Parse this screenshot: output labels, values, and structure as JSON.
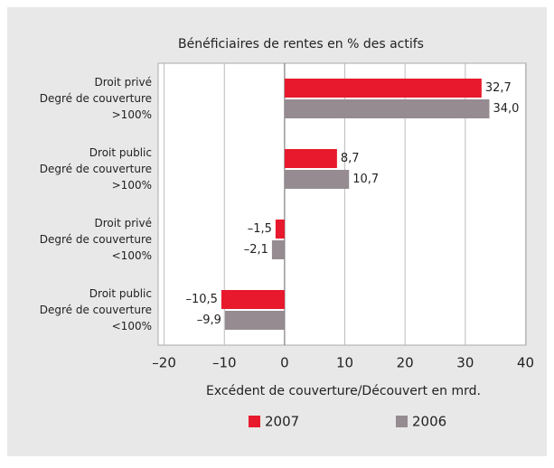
{
  "chart_data": {
    "type": "bar",
    "orientation": "horizontal",
    "title": "Bénéficiaires de rentes en % des actifs",
    "xlabel": "Excédent de couverture/Découvert en mrd.",
    "categories": [
      "Droit privé\nDegré de couverture\n>100%",
      "Droit public\nDegré de couverture\n>100%",
      "Droit privé\nDegré de couverture\n<100%",
      "Droit public\nDegré de couverture\n<100%"
    ],
    "series": [
      {
        "name": "2007",
        "color": "#e8192c",
        "values": [
          32.7,
          8.7,
          -1.5,
          -10.5
        ],
        "value_labels": [
          "32,7",
          "8,7",
          "–1,5",
          "–10,5"
        ]
      },
      {
        "name": "2006",
        "color": "#958b91",
        "values": [
          34.0,
          10.7,
          -2.1,
          -9.9
        ],
        "value_labels": [
          "34,0",
          "10,7",
          "–2,1",
          "–9,9"
        ]
      }
    ],
    "xlim": [
      -20,
      40
    ],
    "xticks": [
      {
        "value": -20,
        "label": "–20"
      },
      {
        "value": -10,
        "label": "–10"
      },
      0,
      10,
      20,
      30,
      40
    ],
    "grid": true,
    "legend": "bottom"
  }
}
